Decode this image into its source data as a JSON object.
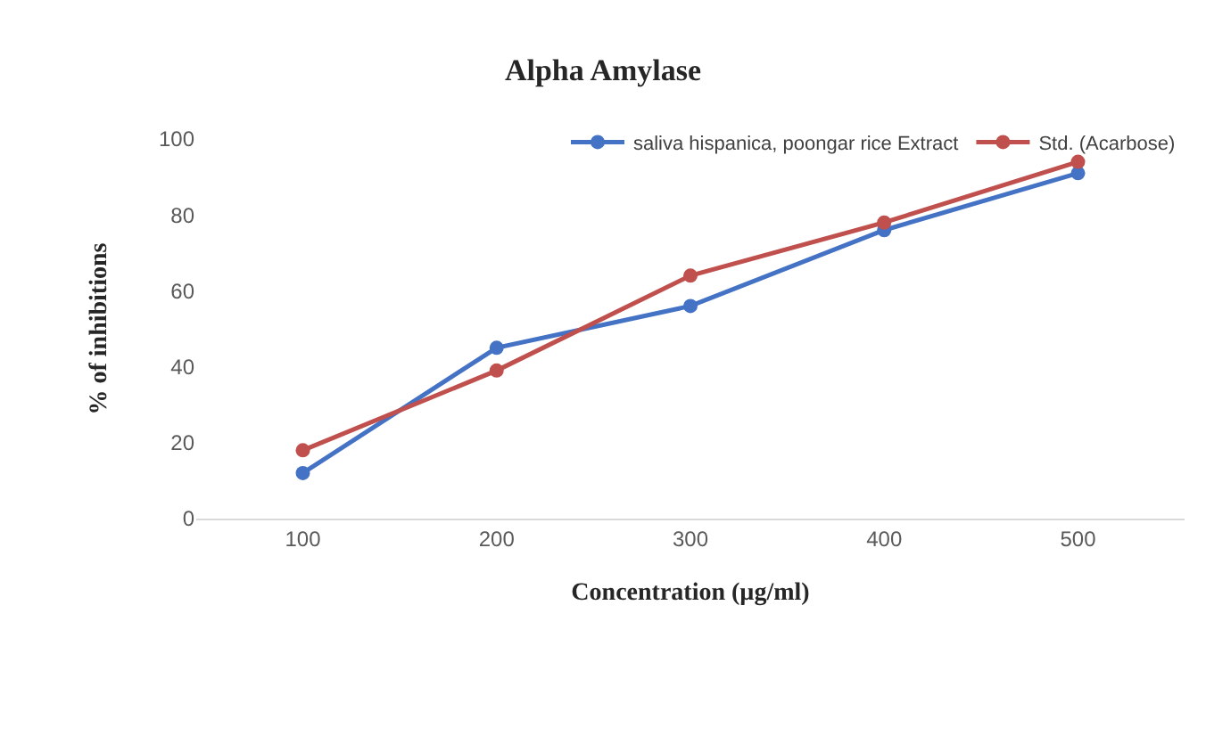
{
  "chart_data": {
    "type": "line",
    "title": "Alpha Amylase",
    "xlabel": "Concentration (µg/ml)",
    "ylabel": "% of inhibitions",
    "categories": [
      "100",
      "200",
      "300",
      "400",
      "500"
    ],
    "series": [
      {
        "name": "saliva hispanica, poongar rice Extract",
        "color": "#4472c4",
        "values": [
          12,
          45,
          56,
          76,
          91
        ]
      },
      {
        "name": "Std. (Acarbose)",
        "color": "#c0504d",
        "values": [
          18,
          39,
          64,
          78,
          94
        ]
      }
    ],
    "ylim": [
      0,
      100
    ],
    "yticks": [
      0,
      20,
      40,
      60,
      80,
      100
    ],
    "grid": false,
    "legend": "top right",
    "marker": "circle",
    "line_style": "solid"
  }
}
